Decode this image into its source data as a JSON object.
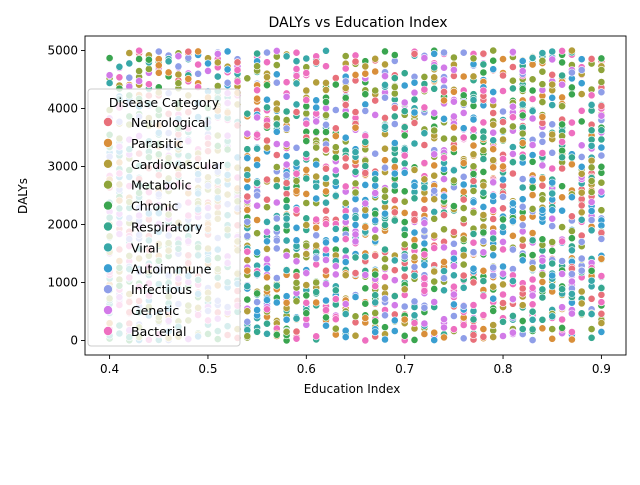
{
  "chart_data": {
    "type": "scatter",
    "title": "DALYs vs Education Index",
    "xlabel": "Education Index",
    "ylabel": "DALYs",
    "xlim": [
      0.375,
      0.925
    ],
    "ylim": [
      -250,
      5250
    ],
    "x_ticks": [
      "0.4",
      "0.5",
      "0.6",
      "0.7",
      "0.8",
      "0.9"
    ],
    "x_tick_values": [
      0.4,
      0.5,
      0.6,
      0.7,
      0.8,
      0.9
    ],
    "y_ticks": [
      "0",
      "1000",
      "2000",
      "3000",
      "4000",
      "5000"
    ],
    "y_tick_values": [
      0,
      1000,
      2000,
      3000,
      4000,
      5000
    ],
    "x_range": [
      0.4,
      0.9
    ],
    "x_step": 0.01,
    "y_range": [
      0,
      5000
    ],
    "grid": false,
    "legend": {
      "title": "Disease Category",
      "placement": "upper-left"
    },
    "series": [
      {
        "name": "Neurological",
        "color": "#e8707a"
      },
      {
        "name": "Parasitic",
        "color": "#d98f3a"
      },
      {
        "name": "Cardiovascular",
        "color": "#b39e3b"
      },
      {
        "name": "Metabolic",
        "color": "#8fa43a"
      },
      {
        "name": "Chronic",
        "color": "#3aa54f"
      },
      {
        "name": "Respiratory",
        "color": "#36a890"
      },
      {
        "name": "Viral",
        "color": "#38a8a8"
      },
      {
        "name": "Autoimmune",
        "color": "#3a9fd1"
      },
      {
        "name": "Infectious",
        "color": "#8f9ee8"
      },
      {
        "name": "Genetic",
        "color": "#d27ae8"
      },
      {
        "name": "Bacterial",
        "color": "#ee6fc0"
      }
    ]
  }
}
